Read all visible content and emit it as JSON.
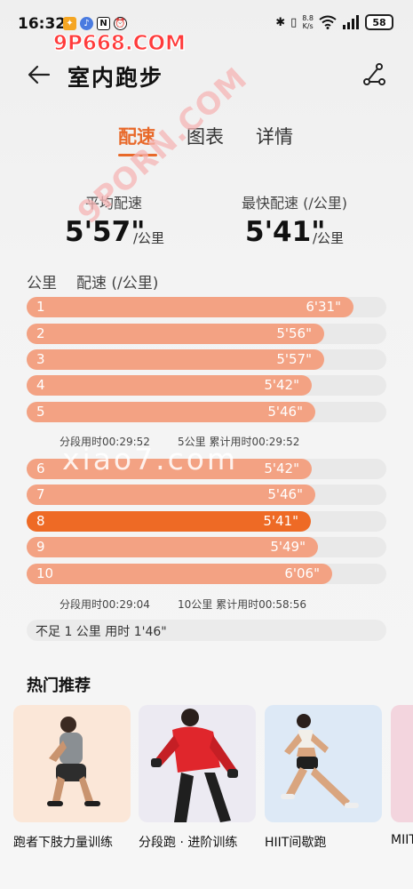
{
  "status": {
    "time": "16:32",
    "speed_value": "8.8",
    "speed_unit": "K/s",
    "battery": "58"
  },
  "watermarks": {
    "top": "9P668.COM",
    "diagonal": "9PORN.COM",
    "faint": "xiao7.com"
  },
  "header": {
    "title": "室内跑步"
  },
  "tabs": [
    {
      "label": "配速"
    },
    {
      "label": "图表"
    },
    {
      "label": "详情"
    }
  ],
  "summary": {
    "avg_label": "平均配速",
    "avg_value": "5'57\"",
    "avg_unit": "/公里",
    "best_label": "最快配速 (/公里)",
    "best_value": "5'41\"",
    "best_unit": "/公里"
  },
  "list": {
    "col_km": "公里",
    "col_pace": "配速 (/公里)",
    "rows": [
      {
        "km": "1",
        "pace": "6'31\"",
        "fraction": 0.908
      },
      {
        "km": "2",
        "pace": "5'56\"",
        "fraction": 0.827
      },
      {
        "km": "3",
        "pace": "5'57\"",
        "fraction": 0.827
      },
      {
        "km": "4",
        "pace": "5'42\"",
        "fraction": 0.793
      },
      {
        "km": "5",
        "pace": "5'46\"",
        "fraction": 0.803
      },
      {
        "km": "6",
        "pace": "5'42\"",
        "fraction": 0.793
      },
      {
        "km": "7",
        "pace": "5'46\"",
        "fraction": 0.803
      },
      {
        "km": "8",
        "pace": "5'41\"",
        "fraction": 0.79,
        "fastest": true
      },
      {
        "km": "9",
        "pace": "5'49\"",
        "fraction": 0.81
      },
      {
        "km": "10",
        "pace": "6'06\"",
        "fraction": 0.85
      }
    ],
    "splits": [
      {
        "segment": "分段用时00:29:52",
        "cumulative": "5公里 累计用时00:29:52"
      },
      {
        "segment": "分段用时00:29:04",
        "cumulative": "10公里 累计用时00:58:56"
      }
    ],
    "remainder": "不足 1 公里 用时 1'46\""
  },
  "recommend": {
    "title": "热门推荐",
    "cards": [
      {
        "label": "跑者下肢力量训练"
      },
      {
        "label": "分段跑 · 进阶训练"
      },
      {
        "label": "HIIT间歇跑"
      },
      {
        "label": "MIIT"
      }
    ]
  },
  "colors": {
    "accent": "#e8692a",
    "bar": "#f3a283",
    "bar_fastest": "#ee6a25",
    "track": "#e9e9e9"
  }
}
